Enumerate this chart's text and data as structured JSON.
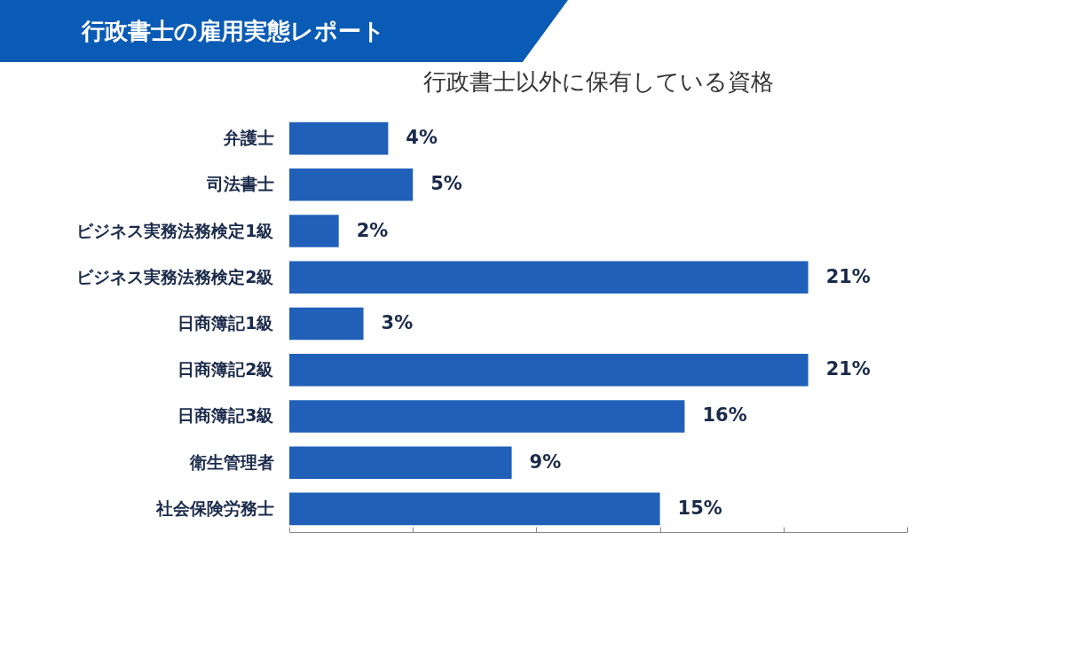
{
  "chart_data": {
    "type": "bar",
    "orientation": "horizontal",
    "title": "行政書士の雇用実態レポート",
    "subtitle": "行政書士以外に保有している資格",
    "categories": [
      "弁護士",
      "司法書士",
      "ビジネス実務法務検定1級",
      "ビジネス実務法務検定2級",
      "日商簿記1級",
      "日商簿記2級",
      "日商簿記3級",
      "衛生管理者",
      "社会保険労務士"
    ],
    "values": [
      4,
      5,
      2,
      21,
      3,
      21,
      16,
      9,
      15
    ],
    "value_labels": [
      "4%",
      "5%",
      "2%",
      "21%",
      "3%",
      "21%",
      "16%",
      "9%",
      "15%"
    ],
    "color": "#2160b8",
    "xlim": [
      0,
      25
    ],
    "xticks": [
      {
        "value": 0,
        "label": null
      },
      {
        "value": 5,
        "label": null
      },
      {
        "value": 10,
        "label": null
      },
      {
        "value": 15,
        "label": null
      },
      {
        "value": 20,
        "label": null
      },
      {
        "value": 25,
        "label": null
      }
    ],
    "tick_labels": "y",
    "grid": false
  }
}
